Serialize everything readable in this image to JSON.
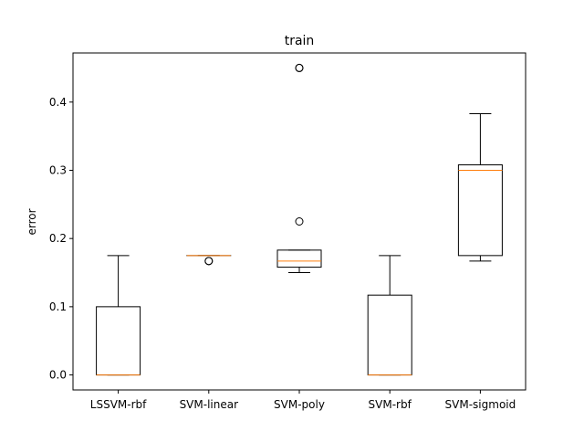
{
  "chart_data": {
    "type": "box",
    "title": "train",
    "xlabel": "",
    "ylabel": "error",
    "ylim": [
      -0.022,
      0.472
    ],
    "yticks": [
      0.0,
      0.1,
      0.2,
      0.3,
      0.4
    ],
    "ytick_labels": [
      "0.0",
      "0.1",
      "0.2",
      "0.3",
      "0.4"
    ],
    "grid": false,
    "colors": {
      "box": "#000000",
      "median": "#ff7f0e",
      "flier": "#000000"
    },
    "categories": [
      "LSSVM-rbf",
      "SVM-linear",
      "SVM-poly",
      "SVM-rbf",
      "SVM-sigmoid"
    ],
    "boxes": [
      {
        "whislo": 0.0,
        "q1": 0.0,
        "med": 0.0,
        "q3": 0.1,
        "whishi": 0.175,
        "fliers": []
      },
      {
        "whislo": 0.175,
        "q1": 0.175,
        "med": 0.175,
        "q3": 0.175,
        "whishi": 0.175,
        "fliers": [
          0.167,
          0.167
        ]
      },
      {
        "whislo": 0.15,
        "q1": 0.158,
        "med": 0.167,
        "q3": 0.183,
        "whishi": 0.183,
        "fliers": [
          0.225,
          0.45,
          0.45
        ]
      },
      {
        "whislo": 0.0,
        "q1": 0.0,
        "med": 0.0,
        "q3": 0.117,
        "whishi": 0.175,
        "fliers": []
      },
      {
        "whislo": 0.167,
        "q1": 0.175,
        "med": 0.3,
        "q3": 0.308,
        "whishi": 0.383,
        "fliers": []
      }
    ]
  }
}
